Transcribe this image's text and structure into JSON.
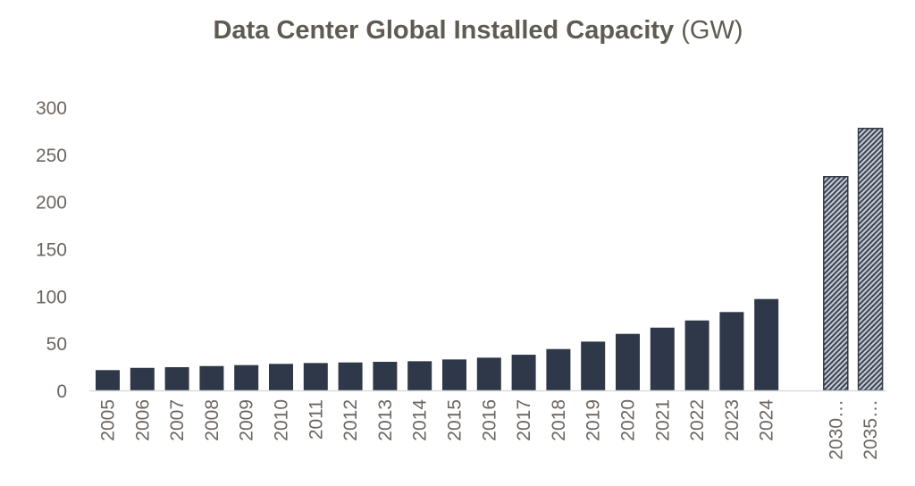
{
  "chart_data": {
    "type": "bar",
    "title": "Data Center Global Installed Capacity",
    "title_unit": "(GW)",
    "xlabel": "",
    "ylabel": "",
    "ylim": [
      0,
      300
    ],
    "yticks": [
      "0",
      "50",
      "100",
      "150",
      "200",
      "250",
      "300"
    ],
    "grid": false,
    "categories": [
      "2005",
      "2006",
      "2007",
      "2008",
      "2009",
      "2010",
      "2011",
      "2012",
      "2013",
      "2014",
      "2015",
      "2016",
      "2017",
      "2018",
      "2019",
      "2020",
      "2021",
      "2022",
      "2023",
      "2024",
      "2030…",
      "2035…"
    ],
    "values": [
      21.5,
      23.9,
      24.6,
      25.8,
      26.8,
      28.1,
      29,
      29.6,
      30.3,
      30.9,
      32.8,
      34.7,
      37.8,
      43.8,
      51.7,
      59.9,
      66.5,
      74.1,
      83,
      96.8,
      226.4,
      277.5
    ],
    "projected": [
      false,
      false,
      false,
      false,
      false,
      false,
      false,
      false,
      false,
      false,
      false,
      false,
      false,
      false,
      false,
      false,
      false,
      false,
      false,
      false,
      true,
      true
    ],
    "colors": {
      "bar": "#2e3848",
      "hatch_bg": "#c9ccd2",
      "text": "#6b6560",
      "axis": "#d9dbe0"
    }
  }
}
